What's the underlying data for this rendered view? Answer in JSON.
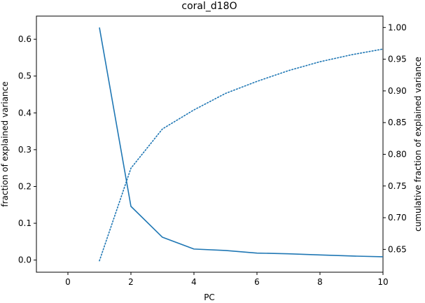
{
  "chart_data": {
    "type": "line",
    "title": "coral_d18O",
    "xlabel": "PC",
    "ylabel_left": "fraction of explained variance",
    "ylabel_right": "cumulative fraction of explained variance",
    "xlim": [
      -1,
      10
    ],
    "ylim_left": [
      -0.033,
      0.663
    ],
    "ylim_right": [
      0.614,
      1.018
    ],
    "x_ticks": [
      0,
      2,
      4,
      6,
      8,
      10
    ],
    "y_left_ticks": [
      0.0,
      0.1,
      0.2,
      0.3,
      0.4,
      0.5,
      0.6
    ],
    "y_right_ticks": [
      0.65,
      0.7,
      0.75,
      0.8,
      0.85,
      0.9,
      0.95,
      1.0
    ],
    "color": "#1f77b4",
    "grid": false,
    "series": [
      {
        "axis": "left",
        "style": "solid",
        "x": [
          1,
          2,
          3,
          4,
          5,
          6,
          7,
          8,
          9,
          10
        ],
        "values": [
          0.632,
          0.146,
          0.062,
          0.03,
          0.026,
          0.019,
          0.017,
          0.014,
          0.011,
          0.009
        ]
      },
      {
        "axis": "right",
        "style": "dotted",
        "x": [
          1,
          2,
          3,
          4,
          5,
          6,
          7,
          8,
          9,
          10
        ],
        "values": [
          0.632,
          0.778,
          0.84,
          0.87,
          0.896,
          0.915,
          0.932,
          0.946,
          0.957,
          0.966
        ]
      }
    ]
  }
}
